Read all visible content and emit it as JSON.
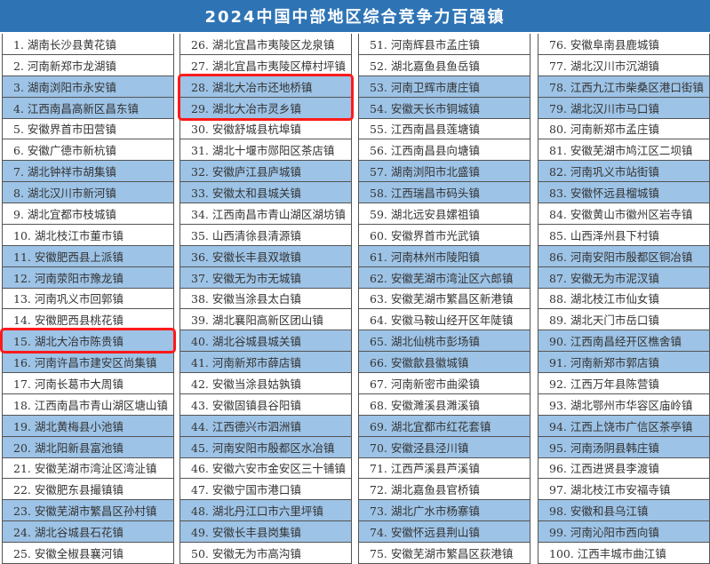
{
  "title": "2024中国中部地区综合竞争力百强镇",
  "colors": {
    "header": "#2e74b5",
    "row_shade": "#9dc3e6",
    "highlight": "#ff1a1a"
  },
  "highlighted_ranks": [
    15,
    28,
    29
  ],
  "columns": [
    [
      "1. 湖南长沙县黄花镇",
      "2. 河南新郑市龙湖镇",
      "3. 湖南浏阳市永安镇",
      "4. 江西南昌高新区昌东镇",
      "5. 安徽界首市田营镇",
      "6. 安徽广德市新杭镇",
      "7. 湖北钟祥市胡集镇",
      "8. 湖北汉川市新河镇",
      "9. 湖北宜都市枝城镇",
      "10. 湖北枝江市董市镇",
      "11. 安徽肥西县上派镇",
      "12. 河南荥阳市豫龙镇",
      "13. 河南巩义市回郭镇",
      "14. 安徽肥西县桃花镇",
      "15. 湖北大冶市陈贵镇",
      "16. 河南许昌市建安区尚集镇",
      "17. 河南长葛市大周镇",
      "18. 江西南昌市青山湖区塘山镇",
      "19. 湖北黄梅县小池镇",
      "20. 湖北阳新县富池镇",
      "21. 安徽芜湖市湾沚区湾沚镇",
      "22. 安徽肥东县撮镇镇",
      "23. 安徽芜湖市繁昌区孙村镇",
      "24. 湖北谷城县石花镇",
      "25. 安徽全椒县襄河镇"
    ],
    [
      "26. 湖北宜昌市夷陵区龙泉镇",
      "27. 湖北宜昌市夷陵区樟村坪镇",
      "28. 湖北大冶市还地桥镇",
      "29. 湖北大冶市灵乡镇",
      "30. 安徽舒城县杭埠镇",
      "31. 湖北十堰市郧阳区茶店镇",
      "32. 安徽庐江县庐城镇",
      "33. 安徽太和县城关镇",
      "34. 江西南昌市青山湖区湖坊镇",
      "35. 山西清徐县清源镇",
      "36. 安徽长丰县双墩镇",
      "37. 安徽无为市无城镇",
      "38. 安徽当涂县太白镇",
      "39. 湖北襄阳高新区团山镇",
      "40. 湖北谷城县城关镇",
      "41. 河南新郑市薛店镇",
      "42. 安徽当涂县姑孰镇",
      "43. 安徽固镇县谷阳镇",
      "44. 江西德兴市泗洲镇",
      "45. 河南安阳市殷都区水冶镇",
      "46. 安徽六安市金安区三十铺镇",
      "47. 安徽宁国市港口镇",
      "48. 湖北丹江口市六里坪镇",
      "49. 安徽长丰县岗集镇",
      "50. 安徽无为市高沟镇"
    ],
    [
      "51. 河南辉县市孟庄镇",
      "52. 湖北嘉鱼县鱼岳镇",
      "53. 河南卫辉市唐庄镇",
      "54. 安徽天长市铜城镇",
      "55. 江西南昌县莲塘镇",
      "56. 江西南昌县向塘镇",
      "57. 湖南浏阳市北盛镇",
      "58. 江西瑞昌市码头镇",
      "59. 湖北远安县嫘祖镇",
      "60. 安徽界首市光武镇",
      "61. 河南林州市陵阳镇",
      "62. 安徽芜湖市湾沚区六郎镇",
      "63. 安徽芜湖市繁昌区新港镇",
      "64. 安徽马鞍山经开区年陡镇",
      "65. 湖北仙桃市彭场镇",
      "66. 安徽歙县徽城镇",
      "67. 河南新密市曲梁镇",
      "68. 安徽濉溪县濉溪镇",
      "69. 湖北宜都市红花套镇",
      "70. 安徽泾县泾川镇",
      "71. 江西芦溪县芦溪镇",
      "72. 湖北嘉鱼县官桥镇",
      "73. 湖北广水市杨寨镇",
      "74. 安徽怀远县荆山镇",
      "75. 安徽芜湖市繁昌区荻港镇"
    ],
    [
      "76. 安徽阜南县鹿城镇",
      "77. 湖北汉川市沉湖镇",
      "78. 江西九江市柴桑区港口街镇",
      "79. 湖北汉川市马口镇",
      "80. 河南新郑市孟庄镇",
      "81. 安徽芜湖市鸠江区二坝镇",
      "82. 河南巩义市站街镇",
      "83. 安徽怀远县榴城镇",
      "84. 安徽黄山市徽州区岩寺镇",
      "85. 山西泽州县下村镇",
      "86. 河南安阳市殷都区铜冶镇",
      "87. 安徽无为市泥汊镇",
      "88. 湖北枝江市仙女镇",
      "89. 湖北天门市岳口镇",
      "90. 江西南昌经开区樵舍镇",
      "91. 河南新郑市郭店镇",
      "92. 江西万年县陈营镇",
      "93. 湖北鄂州市华容区庙岭镇",
      "94. 江西上饶市广信区茶亭镇",
      "95. 河南汤阴县韩庄镇",
      "96. 江西进贤县李渡镇",
      "97. 湖北枝江市安福寺镇",
      "98. 安徽和县乌江镇",
      "99. 河南沁阳市西向镇",
      "100. 江西丰城市曲江镇"
    ]
  ]
}
